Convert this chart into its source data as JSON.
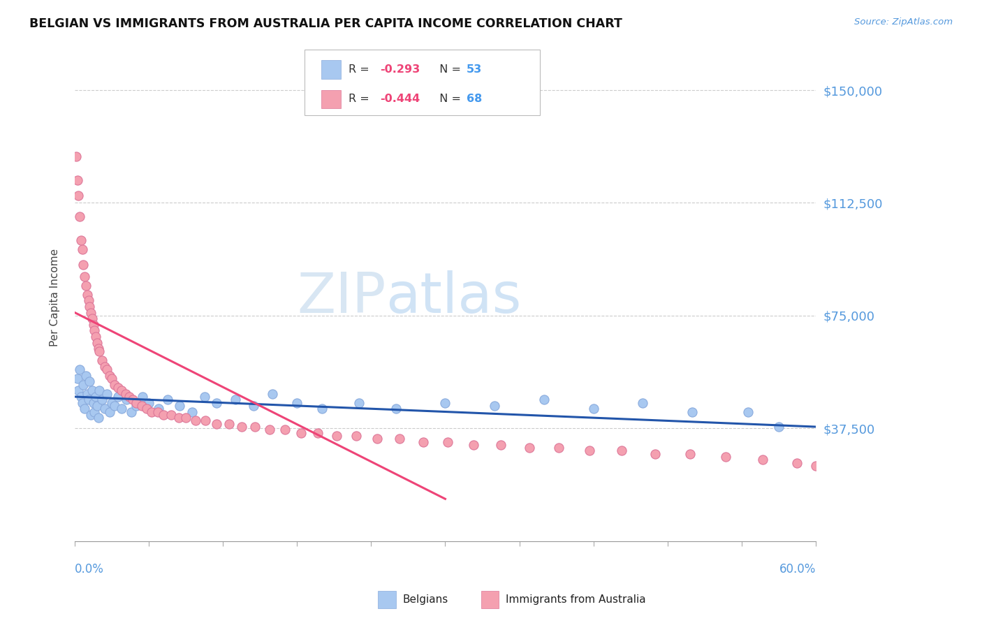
{
  "title": "BELGIAN VS IMMIGRANTS FROM AUSTRALIA PER CAPITA INCOME CORRELATION CHART",
  "source": "Source: ZipAtlas.com",
  "ylabel": "Per Capita Income",
  "yticks": [
    0,
    37500,
    75000,
    112500,
    150000
  ],
  "ytick_labels": [
    "",
    "$37,500",
    "$75,000",
    "$112,500",
    "$150,000"
  ],
  "xlim": [
    0.0,
    0.6
  ],
  "ylim": [
    0,
    162000
  ],
  "watermark_zip": "ZIP",
  "watermark_atlas": "atlas",
  "legend_r1_pre": "R = ",
  "legend_r1_val": "-0.293",
  "legend_n1_pre": "N = ",
  "legend_n1_val": "53",
  "legend_r2_pre": "R = ",
  "legend_r2_val": "-0.444",
  "legend_n2_pre": "N = ",
  "legend_n2_val": "68",
  "blue_color": "#A8C8F0",
  "pink_color": "#F4A0B0",
  "blue_line_color": "#2255AA",
  "pink_line_color": "#EE4477",
  "axis_label_color": "#5599DD",
  "title_color": "#111111",
  "grid_color": "#CCCCCC",
  "belgians_x": [
    0.002,
    0.003,
    0.004,
    0.005,
    0.006,
    0.007,
    0.008,
    0.009,
    0.01,
    0.011,
    0.012,
    0.013,
    0.014,
    0.015,
    0.016,
    0.017,
    0.018,
    0.019,
    0.02,
    0.022,
    0.024,
    0.026,
    0.028,
    0.03,
    0.032,
    0.035,
    0.038,
    0.042,
    0.046,
    0.05,
    0.055,
    0.06,
    0.068,
    0.075,
    0.085,
    0.095,
    0.105,
    0.115,
    0.13,
    0.145,
    0.16,
    0.18,
    0.2,
    0.23,
    0.26,
    0.3,
    0.34,
    0.38,
    0.42,
    0.46,
    0.5,
    0.545,
    0.57
  ],
  "belgians_y": [
    54000,
    50000,
    57000,
    48000,
    46000,
    52000,
    44000,
    55000,
    49000,
    47000,
    53000,
    42000,
    50000,
    46000,
    43000,
    48000,
    45000,
    41000,
    50000,
    47000,
    44000,
    49000,
    43000,
    46000,
    45000,
    48000,
    44000,
    47000,
    43000,
    45000,
    48000,
    46000,
    44000,
    47000,
    45000,
    43000,
    48000,
    46000,
    47000,
    45000,
    49000,
    46000,
    44000,
    46000,
    44000,
    46000,
    45000,
    47000,
    44000,
    46000,
    43000,
    43000,
    38000
  ],
  "australians_x": [
    0.001,
    0.002,
    0.003,
    0.004,
    0.005,
    0.006,
    0.007,
    0.008,
    0.009,
    0.01,
    0.011,
    0.012,
    0.013,
    0.014,
    0.015,
    0.016,
    0.017,
    0.018,
    0.019,
    0.02,
    0.022,
    0.024,
    0.026,
    0.028,
    0.03,
    0.032,
    0.035,
    0.038,
    0.041,
    0.044,
    0.047,
    0.05,
    0.054,
    0.058,
    0.062,
    0.067,
    0.072,
    0.078,
    0.084,
    0.09,
    0.098,
    0.106,
    0.115,
    0.125,
    0.135,
    0.146,
    0.158,
    0.17,
    0.183,
    0.197,
    0.212,
    0.228,
    0.245,
    0.263,
    0.282,
    0.302,
    0.323,
    0.345,
    0.368,
    0.392,
    0.417,
    0.443,
    0.47,
    0.498,
    0.527,
    0.557,
    0.585,
    0.6
  ],
  "australians_y": [
    128000,
    120000,
    115000,
    108000,
    100000,
    97000,
    92000,
    88000,
    85000,
    82000,
    80000,
    78000,
    76000,
    74000,
    72000,
    70000,
    68000,
    66000,
    64000,
    63000,
    60000,
    58000,
    57000,
    55000,
    54000,
    52000,
    51000,
    50000,
    49000,
    48000,
    47000,
    46000,
    45000,
    44000,
    43000,
    43000,
    42000,
    42000,
    41000,
    41000,
    40000,
    40000,
    39000,
    39000,
    38000,
    38000,
    37000,
    37000,
    36000,
    36000,
    35000,
    35000,
    34000,
    34000,
    33000,
    33000,
    32000,
    32000,
    31000,
    31000,
    30000,
    30000,
    29000,
    29000,
    28000,
    27000,
    26000,
    25000
  ],
  "blue_trendline_x": [
    0.0,
    0.6
  ],
  "blue_trendline_y": [
    48000,
    38000
  ],
  "pink_trendline_x": [
    0.0,
    0.3
  ],
  "pink_trendline_y": [
    76000,
    14000
  ]
}
